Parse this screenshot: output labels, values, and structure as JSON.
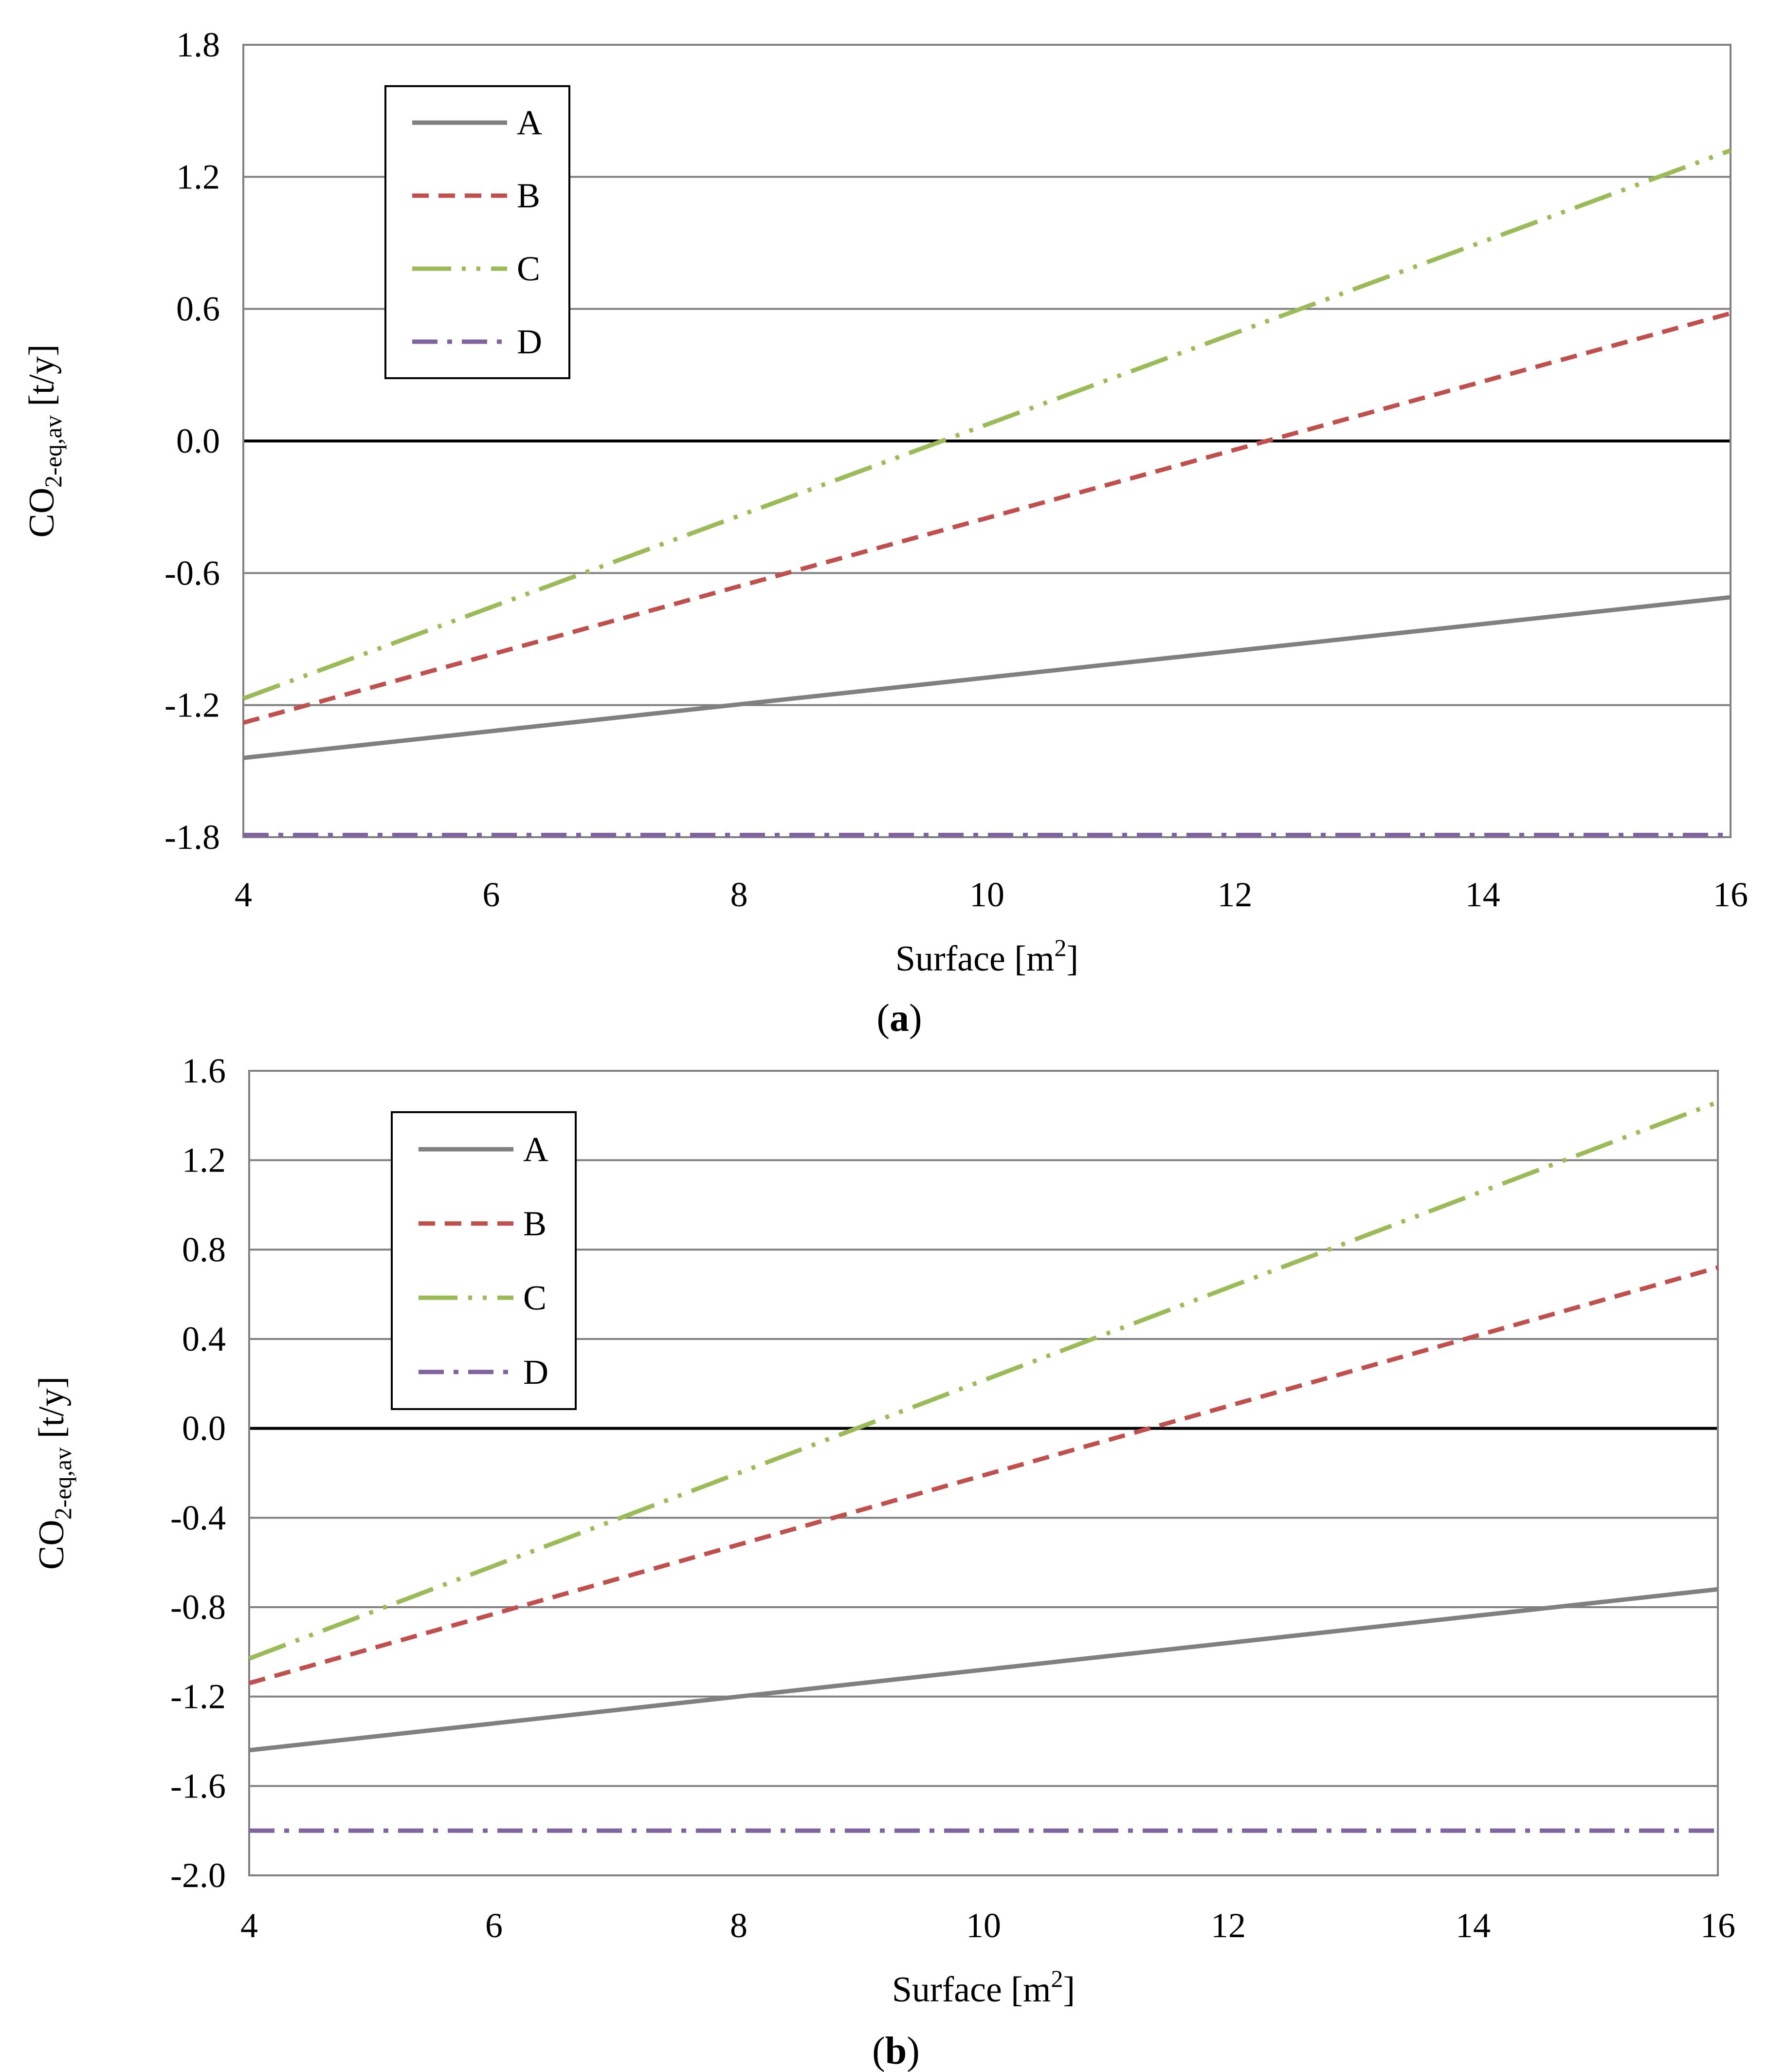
{
  "chart_data": [
    {
      "type": "line",
      "panel": "(a)",
      "panel_letter": "a",
      "xlabel": "Surface [m",
      "xlabel_sup": "2",
      "xlabel_end": "]",
      "ylabel_main": "CO",
      "ylabel_sub": "2-eq,av",
      "ylabel_unit": "[t/y]",
      "xlim": [
        4,
        16
      ],
      "ylim": [
        -1.8,
        1.8
      ],
      "x_ticks": [
        4,
        6,
        8,
        10,
        12,
        14,
        16
      ],
      "y_ticks": [
        "1.8",
        "1.2",
        "0.6",
        "0.0",
        "-0.6",
        "-1.2",
        "-1.8"
      ],
      "grid": true,
      "legend": "top-left",
      "series": [
        {
          "name": "A",
          "x": [
            4,
            16
          ],
          "y": [
            -1.44,
            -0.71
          ]
        },
        {
          "name": "B",
          "x": [
            4,
            16
          ],
          "y": [
            -1.28,
            0.58
          ]
        },
        {
          "name": "C",
          "x": [
            4,
            16
          ],
          "y": [
            -1.17,
            1.32
          ]
        },
        {
          "name": "D",
          "x": [
            4,
            16
          ],
          "y": [
            -1.79,
            -1.79
          ]
        }
      ]
    },
    {
      "type": "line",
      "panel": "(b)",
      "panel_letter": "b",
      "xlabel": "Surface [m",
      "xlabel_sup": "2",
      "xlabel_end": "]",
      "ylabel_main": "CO",
      "ylabel_sub": "2-eq,av",
      "ylabel_unit": "[t/y]",
      "xlim": [
        4,
        16
      ],
      "ylim": [
        -2.0,
        1.6
      ],
      "x_ticks": [
        4,
        6,
        8,
        10,
        12,
        14,
        16
      ],
      "y_ticks": [
        "1.6",
        "1.2",
        "0.8",
        "0.4",
        "0.0",
        "-0.4",
        "-0.8",
        "-1.2",
        "-1.6",
        "-2.0"
      ],
      "grid": true,
      "legend": "top-left",
      "series": [
        {
          "name": "A",
          "x": [
            4,
            16
          ],
          "y": [
            -1.44,
            -0.72
          ]
        },
        {
          "name": "B",
          "x": [
            4,
            16
          ],
          "y": [
            -1.14,
            0.72
          ]
        },
        {
          "name": "C",
          "x": [
            4,
            16
          ],
          "y": [
            -1.03,
            1.46
          ]
        },
        {
          "name": "D",
          "x": [
            4,
            16
          ],
          "y": [
            -1.8,
            -1.8
          ]
        }
      ]
    }
  ],
  "styles": {
    "A": {
      "color": "#808080",
      "dash": "none"
    },
    "B": {
      "color": "#c0504d",
      "dash": "dash"
    },
    "C": {
      "color": "#9bbb59",
      "dash": "dash-dot-dot"
    },
    "D": {
      "color": "#8064a2",
      "dash": "dash-dot"
    },
    "grid_color": "#808080",
    "zero_color": "#000000"
  }
}
